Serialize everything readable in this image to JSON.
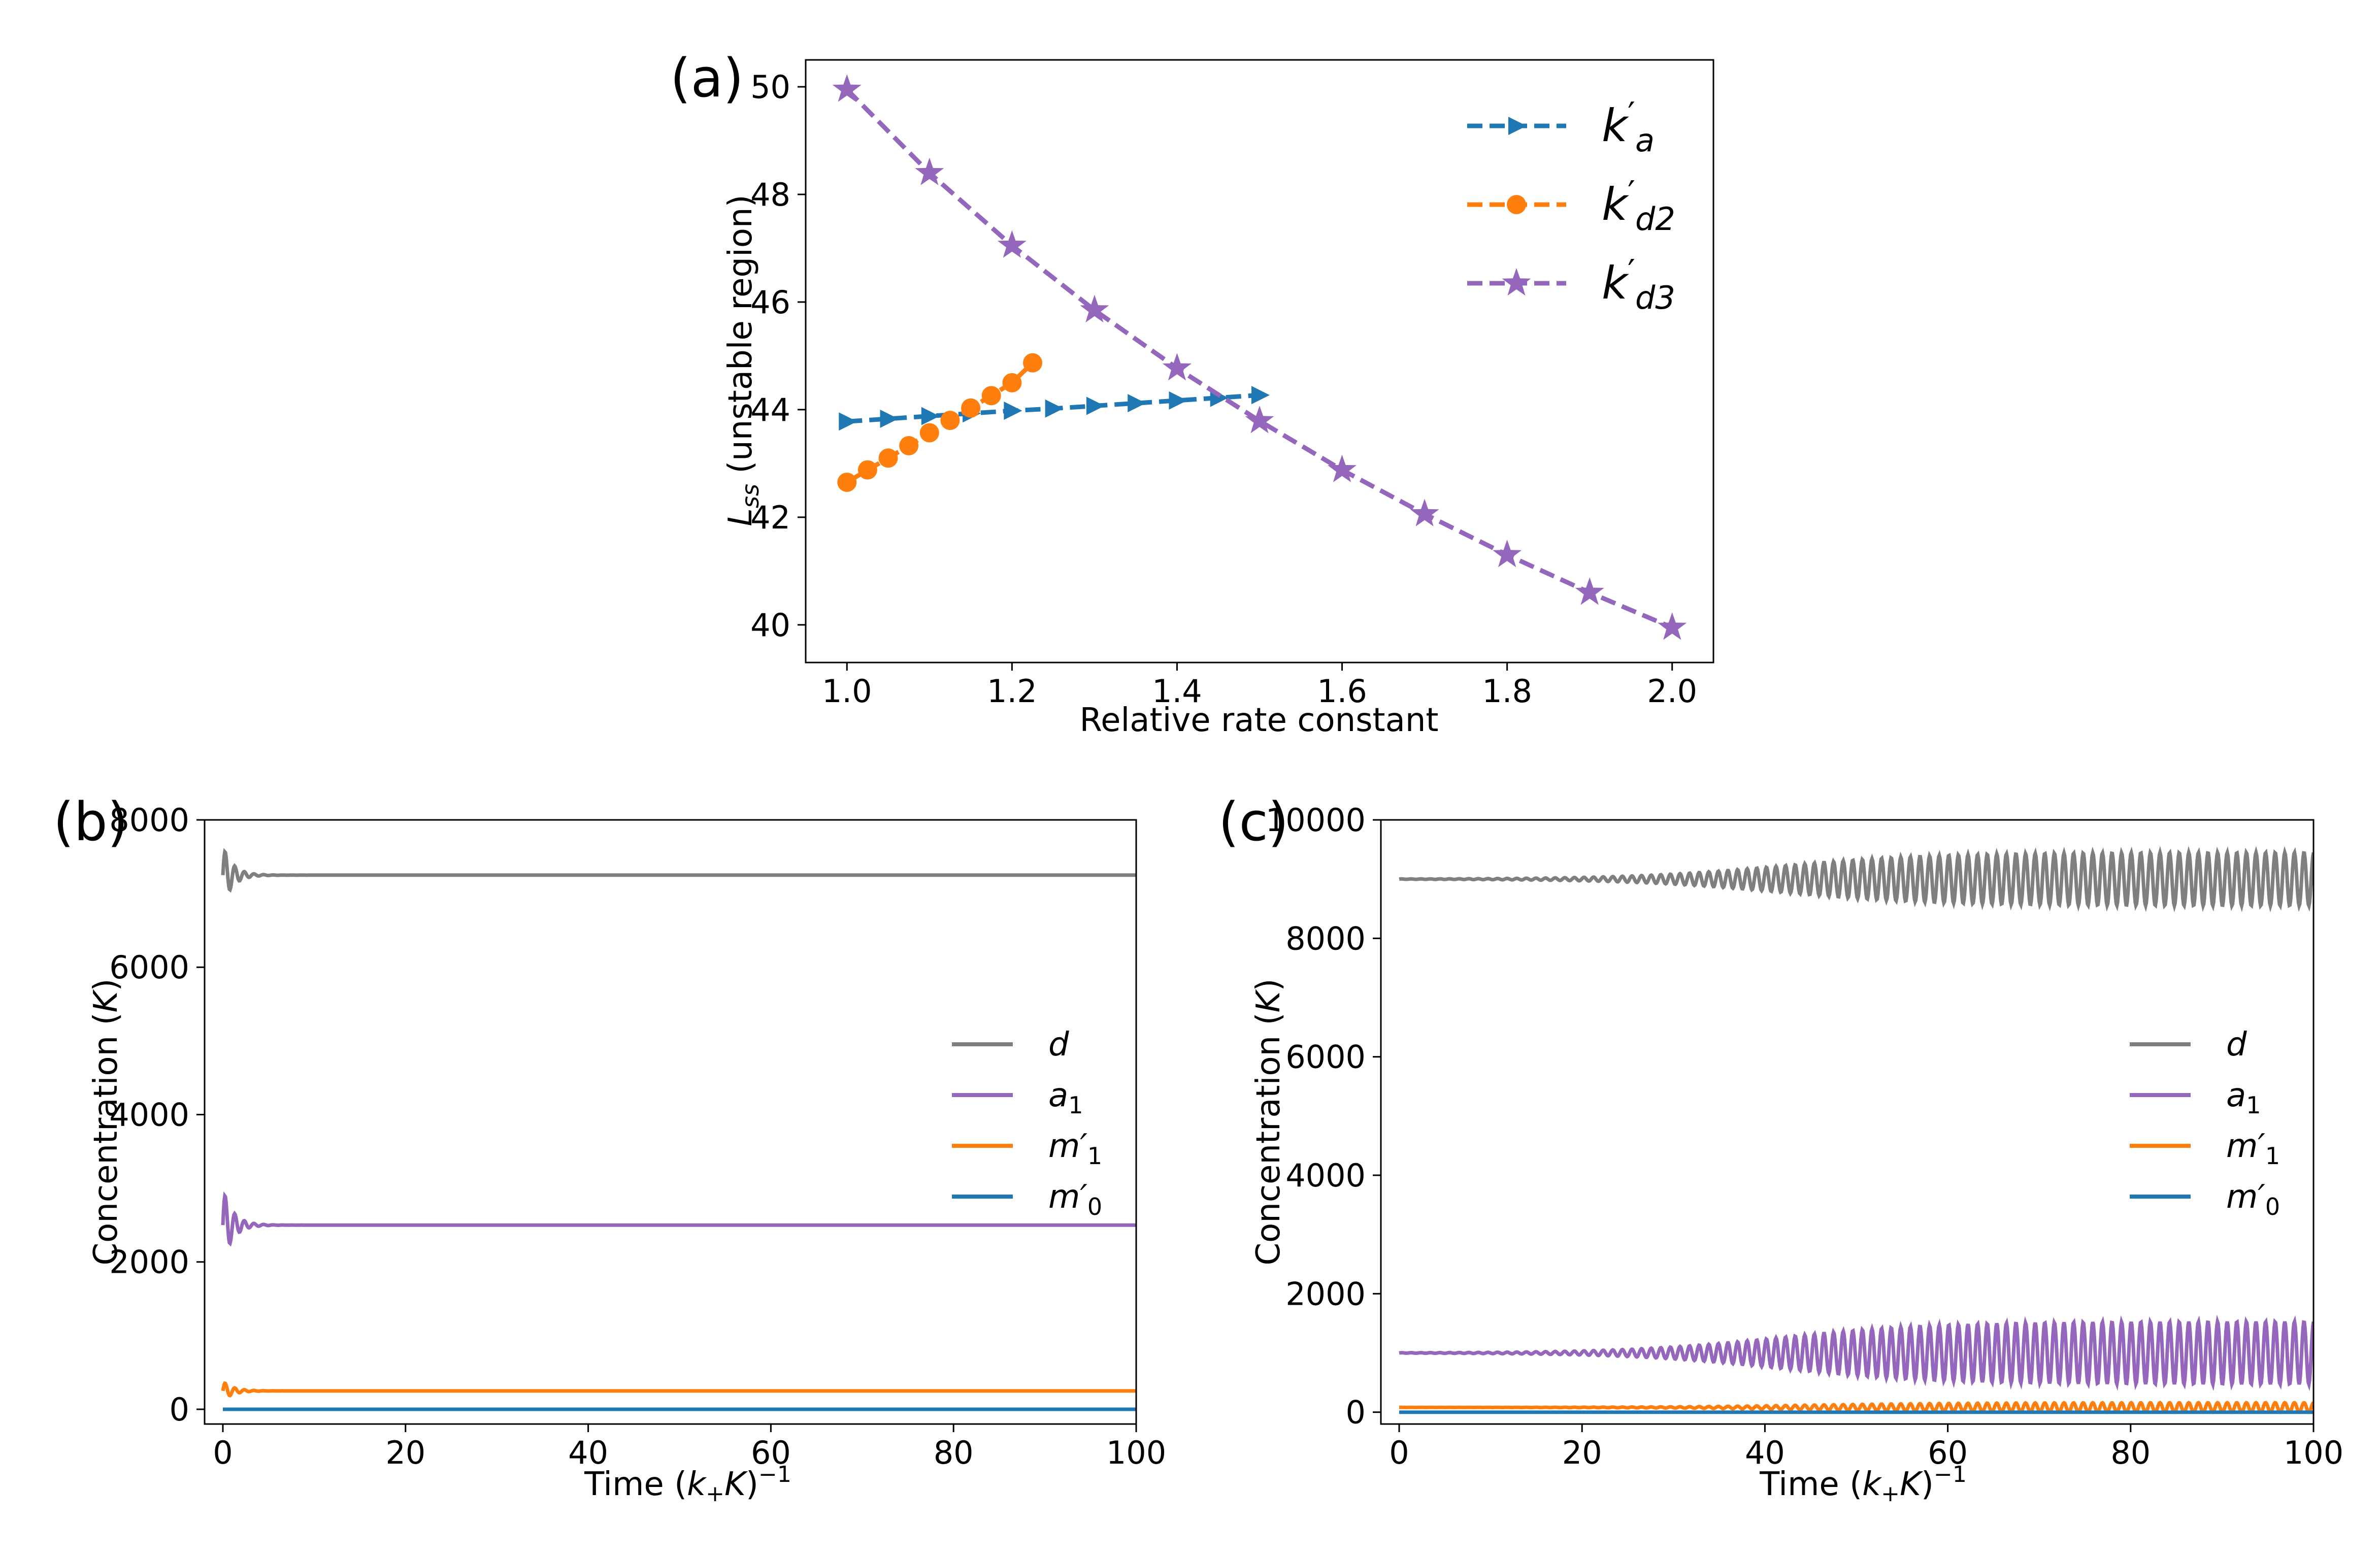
{
  "chart_data": [
    {
      "panel": "(a)",
      "type": "line",
      "xlabel": "Relative rate constant",
      "ylabel": "L_ss (unstable region)",
      "ylabel_main": "L",
      "ylabel_sub": "ss",
      "ylabel_rest": " (unstable region)",
      "xlim": [
        0.95,
        2.05
      ],
      "ylim": [
        39.3,
        50.5
      ],
      "xticks": [
        1.0,
        1.2,
        1.4,
        1.6,
        1.8,
        2.0
      ],
      "xtick_labels": [
        "1.0",
        "1.2",
        "1.4",
        "1.6",
        "1.8",
        "2.0"
      ],
      "yticks": [
        40,
        42,
        44,
        46,
        48,
        50
      ],
      "ytick_labels": [
        "40",
        "42",
        "44",
        "46",
        "48",
        "50"
      ],
      "legend_position": "top-right",
      "series": [
        {
          "name": "k'_a",
          "label_main": "k",
          "label_sub": "a",
          "color": "#1f77b4",
          "marker": "triangle-right",
          "x": [
            1.0,
            1.05,
            1.1,
            1.15,
            1.2,
            1.25,
            1.3,
            1.35,
            1.4,
            1.45,
            1.5
          ],
          "y": [
            43.78,
            43.83,
            43.88,
            43.93,
            43.98,
            44.02,
            44.07,
            44.12,
            44.17,
            44.22,
            44.27
          ]
        },
        {
          "name": "k'_d2",
          "label_main": "k",
          "label_sub": "d2",
          "color": "#ff7f0e",
          "marker": "circle",
          "x": [
            1.0,
            1.025,
            1.05,
            1.075,
            1.1,
            1.125,
            1.15,
            1.175,
            1.2,
            1.225
          ],
          "y": [
            42.65,
            42.88,
            43.1,
            43.33,
            43.57,
            43.8,
            44.03,
            44.26,
            44.5,
            44.87
          ]
        },
        {
          "name": "k'_d3",
          "label_main": "k",
          "label_sub": "d3",
          "color": "#9467bd",
          "marker": "star",
          "x": [
            1.0,
            1.1,
            1.2,
            1.3,
            1.4,
            1.5,
            1.6,
            1.7,
            1.8,
            1.9,
            2.0
          ],
          "y": [
            49.95,
            48.4,
            47.05,
            45.85,
            44.77,
            43.79,
            42.88,
            42.06,
            41.3,
            40.6,
            39.95
          ]
        }
      ]
    },
    {
      "panel": "(b)",
      "type": "line",
      "xlabel": "Time (k_+K)^-1",
      "xlabel_pre": "Time (",
      "xlabel_k": "k",
      "xlabel_plus": "+",
      "xlabel_K": "K",
      "xlabel_post": ")",
      "xlabel_exp": "−1",
      "ylabel": "Concentration (K)",
      "ylabel_pre": "Concentration (",
      "ylabel_K": "K",
      "ylabel_post": ")",
      "xlim": [
        -2,
        100
      ],
      "ylim": [
        -200,
        8000
      ],
      "xticks": [
        0,
        20,
        40,
        60,
        80,
        100
      ],
      "xtick_labels": [
        "0",
        "20",
        "40",
        "60",
        "80",
        "100"
      ],
      "yticks": [
        0,
        2000,
        4000,
        6000,
        8000
      ],
      "ytick_labels": [
        "0",
        "2000",
        "4000",
        "6000",
        "8000"
      ],
      "legend_position": "center-right",
      "series": [
        {
          "name": "d",
          "label_main": "d",
          "label_sub": "",
          "color": "#7f7f7f",
          "steady": 7250,
          "amp0": 400,
          "decay": 0.9,
          "growth": 0
        },
        {
          "name": "a_1",
          "label_main": "a",
          "label_sub": "1",
          "color": "#9467bd",
          "steady": 2500,
          "amp0": 500,
          "decay": 0.9,
          "growth": 0
        },
        {
          "name": "m'_1",
          "label_main": "m′",
          "label_sub": "1",
          "color": "#ff7f0e",
          "steady": 250,
          "amp0": 130,
          "decay": 0.9,
          "growth": 0
        },
        {
          "name": "m'_0",
          "label_main": "m′",
          "label_sub": "0",
          "color": "#1f77b4",
          "steady": 0,
          "amp0": 0,
          "decay": 0,
          "growth": 0
        }
      ]
    },
    {
      "panel": "(c)",
      "type": "line",
      "xlabel": "Time (k_+K)^-1",
      "xlabel_pre": "Time (",
      "xlabel_k": "k",
      "xlabel_plus": "+",
      "xlabel_K": "K",
      "xlabel_post": ")",
      "xlabel_exp": "−1",
      "ylabel": "Concentration (K)",
      "ylabel_pre": "Concentration (",
      "ylabel_K": "K",
      "ylabel_post": ")",
      "xlim": [
        -2,
        100
      ],
      "ylim": [
        -200,
        10000
      ],
      "xticks": [
        0,
        20,
        40,
        60,
        80,
        100
      ],
      "xtick_labels": [
        "0",
        "20",
        "40",
        "60",
        "80",
        "100"
      ],
      "yticks": [
        0,
        2000,
        4000,
        6000,
        8000,
        10000
      ],
      "ytick_labels": [
        "0",
        "2000",
        "4000",
        "6000",
        "8000",
        "10000"
      ],
      "legend_position": "center-right",
      "series": [
        {
          "name": "d",
          "label_main": "d",
          "label_sub": "",
          "color": "#7f7f7f",
          "steady": 9000,
          "amp_max": 450,
          "growth_mid": 42,
          "growth_rate": 0.12
        },
        {
          "name": "a_1",
          "label_main": "a",
          "label_sub": "1",
          "color": "#9467bd",
          "steady": 1000,
          "amp_max": 530,
          "growth_mid": 42,
          "growth_rate": 0.12
        },
        {
          "name": "m'_1",
          "label_main": "m′",
          "label_sub": "1",
          "color": "#ff7f0e",
          "steady": 80,
          "amp_max": 80,
          "growth_mid": 45,
          "growth_rate": 0.12
        },
        {
          "name": "m'_0",
          "label_main": "m′",
          "label_sub": "0",
          "color": "#1f77b4",
          "steady": 0,
          "amp_max": 0,
          "growth_mid": 45,
          "growth_rate": 0.12
        }
      ]
    }
  ]
}
